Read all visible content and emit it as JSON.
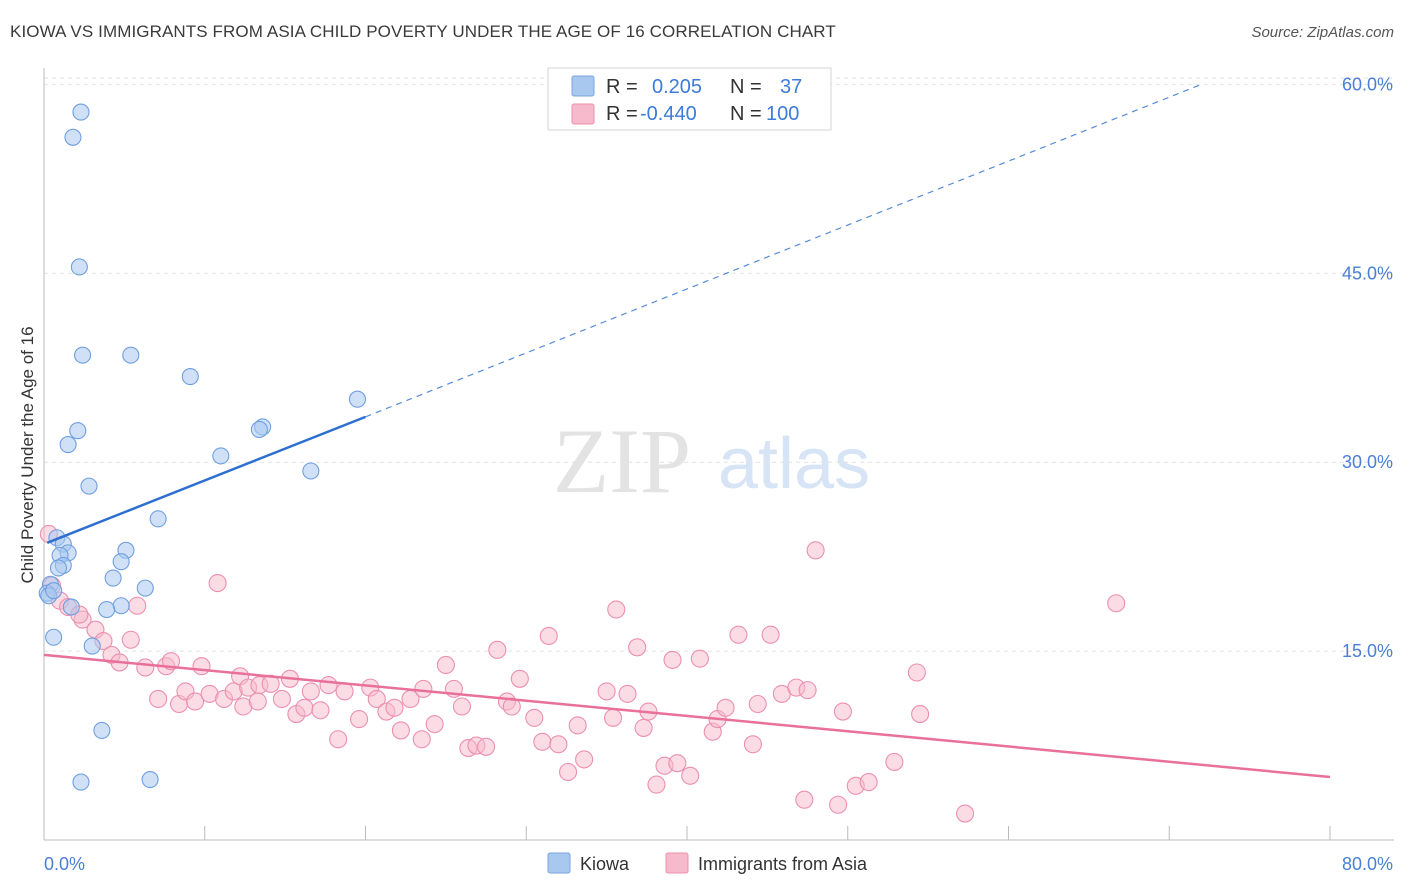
{
  "header": {
    "title": "KIOWA VS IMMIGRANTS FROM ASIA CHILD POVERTY UNDER THE AGE OF 16 CORRELATION CHART",
    "source": "Source: ZipAtlas.com"
  },
  "watermark": {
    "zip": "ZIP",
    "atlas": "atlas"
  },
  "legend": {
    "r_label": "R =",
    "n_label": "N =",
    "rows": [
      {
        "r": "0.205",
        "n": "37",
        "color": "#a9c8f0",
        "stroke": "#7aa5de"
      },
      {
        "r": "-0.440",
        "n": "100",
        "color": "#f7b9cc",
        "stroke": "#ee8fab"
      }
    ]
  },
  "colors": {
    "kiowa_fill": "rgba(170,200,240,0.55)",
    "kiowa_stroke": "#6f9fe0",
    "kiowa_line": "#2d6fd0",
    "asia_fill": "rgba(247,185,204,0.5)",
    "asia_stroke": "#ec8fb0",
    "asia_line": "#e8709b",
    "tick": "#4a7fd4",
    "grid": "#e2e2e2"
  },
  "chart_data": {
    "type": "scatter",
    "title": "KIOWA VS IMMIGRANTS FROM ASIA CHILD POVERTY UNDER THE AGE OF 16 CORRELATION CHART",
    "xlabel": "",
    "ylabel": "Child Poverty Under the Age of 16",
    "xlim": [
      0,
      80
    ],
    "ylim": [
      0,
      64
    ],
    "x_tick_labels": [
      "0.0%",
      "80.0%"
    ],
    "y_ticks": [
      15,
      30,
      45,
      60
    ],
    "y_tick_labels": [
      "15.0%",
      "30.0%",
      "45.0%",
      "60.0%"
    ],
    "grid": true,
    "legend_position": "top-center",
    "series": [
      {
        "name": "Kiowa",
        "r": 0.205,
        "n": 37,
        "trend": {
          "x0": 0.2,
          "y0": 23.6,
          "x1": 20,
          "y1": 33.6,
          "dashed_to_x": 72,
          "dashed_to_y": 60
        },
        "points": [
          [
            2.3,
            57.8
          ],
          [
            1.8,
            55.8
          ],
          [
            2.2,
            45.5
          ],
          [
            2.4,
            38.5
          ],
          [
            5.4,
            38.5
          ],
          [
            9.1,
            36.8
          ],
          [
            19.5,
            35.0
          ],
          [
            2.1,
            32.5
          ],
          [
            13.6,
            32.8
          ],
          [
            13.4,
            32.6
          ],
          [
            1.5,
            31.4
          ],
          [
            11.0,
            30.5
          ],
          [
            16.6,
            29.3
          ],
          [
            2.8,
            28.1
          ],
          [
            7.1,
            25.5
          ],
          [
            0.8,
            24.0
          ],
          [
            1.2,
            23.5
          ],
          [
            5.1,
            23.0
          ],
          [
            1.5,
            22.8
          ],
          [
            1.0,
            22.6
          ],
          [
            4.8,
            22.1
          ],
          [
            1.2,
            21.8
          ],
          [
            0.9,
            21.6
          ],
          [
            6.3,
            20.0
          ],
          [
            0.4,
            20.3
          ],
          [
            4.3,
            20.8
          ],
          [
            0.2,
            19.6
          ],
          [
            0.3,
            19.4
          ],
          [
            0.6,
            19.8
          ],
          [
            1.7,
            18.5
          ],
          [
            4.8,
            18.6
          ],
          [
            3.9,
            18.3
          ],
          [
            0.6,
            16.1
          ],
          [
            3.0,
            15.4
          ],
          [
            3.6,
            8.7
          ],
          [
            2.3,
            4.6
          ],
          [
            6.6,
            4.8
          ]
        ]
      },
      {
        "name": "Immigrants from Asia",
        "r": -0.44,
        "n": 100,
        "trend": {
          "x0": 0,
          "y0": 14.7,
          "x1": 80,
          "y1": 5.0
        },
        "points": [
          [
            0.3,
            24.3
          ],
          [
            0.5,
            20.2
          ],
          [
            1.0,
            19.0
          ],
          [
            2.4,
            17.5
          ],
          [
            1.5,
            18.5
          ],
          [
            2.2,
            17.9
          ],
          [
            3.2,
            16.7
          ],
          [
            3.7,
            15.8
          ],
          [
            4.2,
            14.7
          ],
          [
            4.7,
            14.1
          ],
          [
            5.4,
            15.9
          ],
          [
            5.8,
            18.6
          ],
          [
            10.8,
            20.4
          ],
          [
            7.1,
            11.2
          ],
          [
            6.3,
            13.7
          ],
          [
            7.6,
            13.8
          ],
          [
            7.9,
            14.2
          ],
          [
            8.4,
            10.8
          ],
          [
            8.8,
            11.8
          ],
          [
            9.4,
            11.0
          ],
          [
            9.8,
            13.8
          ],
          [
            10.3,
            11.6
          ],
          [
            11.2,
            11.2
          ],
          [
            11.8,
            11.8
          ],
          [
            12.2,
            13.0
          ],
          [
            12.4,
            10.6
          ],
          [
            12.7,
            12.1
          ],
          [
            13.4,
            12.3
          ],
          [
            14.1,
            12.4
          ],
          [
            14.8,
            11.2
          ],
          [
            15.3,
            12.8
          ],
          [
            15.7,
            10.0
          ],
          [
            16.2,
            10.5
          ],
          [
            16.6,
            11.8
          ],
          [
            17.2,
            10.3
          ],
          [
            17.7,
            12.3
          ],
          [
            18.7,
            11.8
          ],
          [
            18.3,
            8.0
          ],
          [
            19.6,
            9.6
          ],
          [
            20.3,
            12.1
          ],
          [
            20.7,
            11.2
          ],
          [
            21.3,
            10.2
          ],
          [
            21.8,
            10.5
          ],
          [
            22.2,
            8.7
          ],
          [
            22.8,
            11.2
          ],
          [
            23.5,
            8.0
          ],
          [
            23.6,
            12.0
          ],
          [
            24.3,
            9.2
          ],
          [
            25.0,
            13.9
          ],
          [
            25.5,
            12.0
          ],
          [
            26.0,
            10.6
          ],
          [
            26.4,
            7.3
          ],
          [
            26.9,
            7.5
          ],
          [
            27.5,
            7.4
          ],
          [
            28.2,
            15.1
          ],
          [
            28.8,
            11.0
          ],
          [
            29.1,
            10.6
          ],
          [
            29.6,
            12.8
          ],
          [
            30.5,
            9.7
          ],
          [
            31.0,
            7.8
          ],
          [
            31.4,
            16.2
          ],
          [
            32.0,
            7.6
          ],
          [
            32.6,
            5.4
          ],
          [
            33.2,
            9.1
          ],
          [
            33.6,
            6.4
          ],
          [
            35.0,
            11.8
          ],
          [
            35.4,
            9.7
          ],
          [
            35.6,
            18.3
          ],
          [
            36.3,
            11.6
          ],
          [
            36.9,
            15.3
          ],
          [
            37.3,
            8.9
          ],
          [
            37.6,
            10.2
          ],
          [
            38.1,
            4.4
          ],
          [
            38.6,
            5.9
          ],
          [
            39.1,
            14.3
          ],
          [
            39.4,
            6.1
          ],
          [
            40.2,
            5.1
          ],
          [
            40.8,
            14.4
          ],
          [
            41.6,
            8.6
          ],
          [
            41.9,
            9.6
          ],
          [
            42.4,
            10.5
          ],
          [
            43.2,
            16.3
          ],
          [
            44.1,
            7.6
          ],
          [
            44.4,
            10.8
          ],
          [
            45.2,
            16.3
          ],
          [
            45.9,
            11.6
          ],
          [
            46.8,
            12.1
          ],
          [
            47.3,
            3.2
          ],
          [
            47.5,
            11.9
          ],
          [
            48.0,
            23.0
          ],
          [
            49.4,
            2.8
          ],
          [
            49.7,
            10.2
          ],
          [
            50.5,
            4.3
          ],
          [
            51.3,
            4.6
          ],
          [
            52.9,
            6.2
          ],
          [
            54.3,
            13.3
          ],
          [
            54.5,
            10.0
          ],
          [
            57.3,
            2.1
          ],
          [
            66.7,
            18.8
          ],
          [
            13.3,
            11.0
          ]
        ]
      }
    ]
  },
  "bottom_legend": [
    {
      "label": "Kiowa"
    },
    {
      "label": "Immigrants from Asia"
    }
  ]
}
